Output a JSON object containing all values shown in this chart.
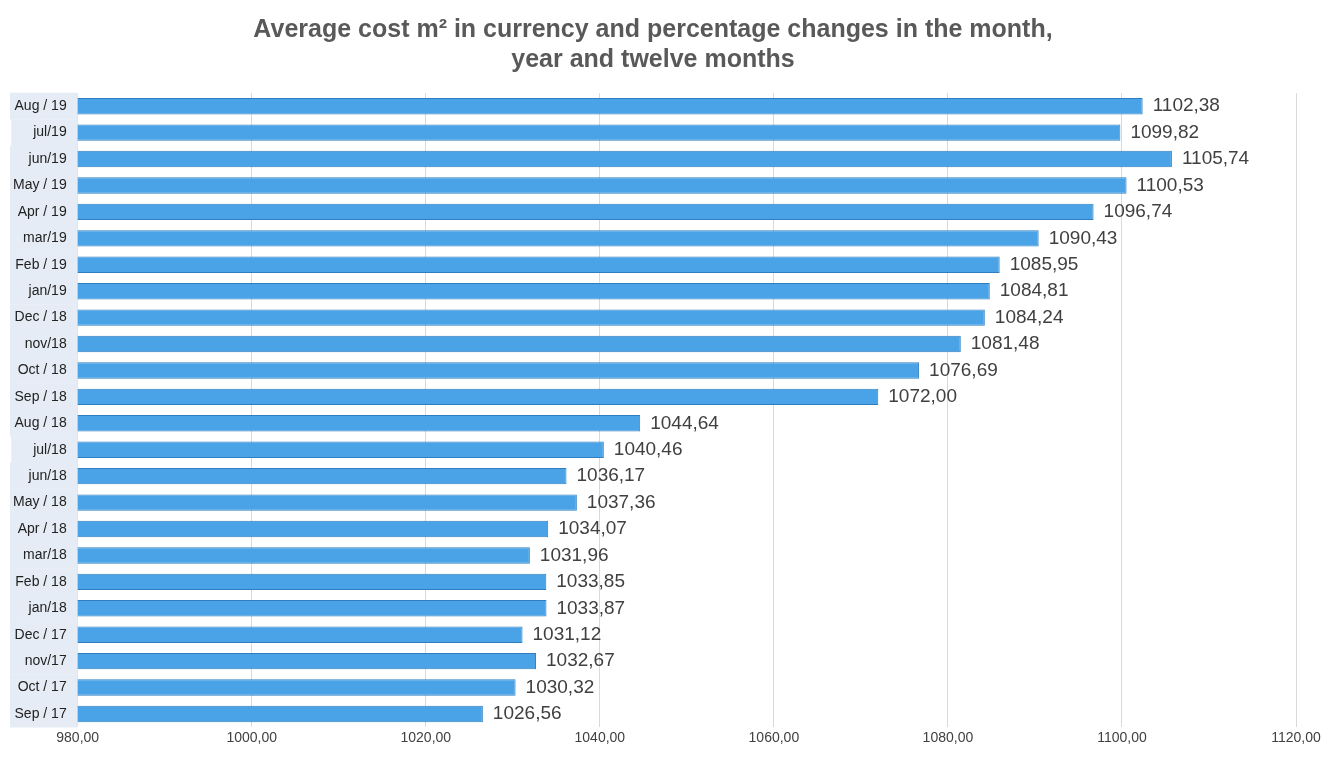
{
  "chart_data": {
    "type": "bar",
    "orientation": "horizontal",
    "title": "Average cost m² in currency and percentage changes in the month, year and twelve months",
    "categories": [
      "Aug / 19",
      "jul/19",
      "jun/19",
      "May / 19",
      "Apr / 19",
      "mar/19",
      "Feb / 19",
      "jan/19",
      "Dec / 18",
      "nov/18",
      "Oct / 18",
      "Sep / 18",
      "Aug / 18",
      "jul/18",
      "jun/18",
      "May / 18",
      "Apr / 18",
      "mar/18",
      "Feb / 18",
      "jan/18",
      "Dec / 17",
      "nov/17",
      "Oct / 17",
      "Sep / 17"
    ],
    "values": [
      1102.38,
      1099.82,
      1105.74,
      1100.53,
      1096.74,
      1090.43,
      1085.95,
      1084.81,
      1084.24,
      1081.48,
      1076.69,
      1072.0,
      1044.64,
      1040.46,
      1036.17,
      1037.36,
      1034.07,
      1031.96,
      1033.85,
      1033.87,
      1031.12,
      1032.67,
      1030.32,
      1026.56
    ],
    "value_labels": [
      "1102,38",
      "1099,82",
      "1105,74",
      "1100,53",
      "1096,74",
      "1090,43",
      "1085,95",
      "1084,81",
      "1084,24",
      "1081,48",
      "1076,69",
      "1072,00",
      "1044,64",
      "1040,46",
      "1036,17",
      "1037,36",
      "1034,07",
      "1031,96",
      "1033,85",
      "1033,87",
      "1031,12",
      "1032,67",
      "1030,32",
      "1026,56"
    ],
    "color": "#4aa3e6",
    "xlim": [
      980,
      1120
    ],
    "xticks": [
      {
        "value": 980,
        "label": "980,00"
      },
      {
        "value": 1000,
        "label": "1000,00"
      },
      {
        "value": 1020,
        "label": "1020,00"
      },
      {
        "value": 1040,
        "label": "1040,00"
      },
      {
        "value": 1060,
        "label": "1060,00"
      },
      {
        "value": 1080,
        "label": "1080,00"
      },
      {
        "value": 1100,
        "label": "1100,00"
      },
      {
        "value": 1120,
        "label": "1120,00"
      }
    ],
    "grid": "x"
  }
}
